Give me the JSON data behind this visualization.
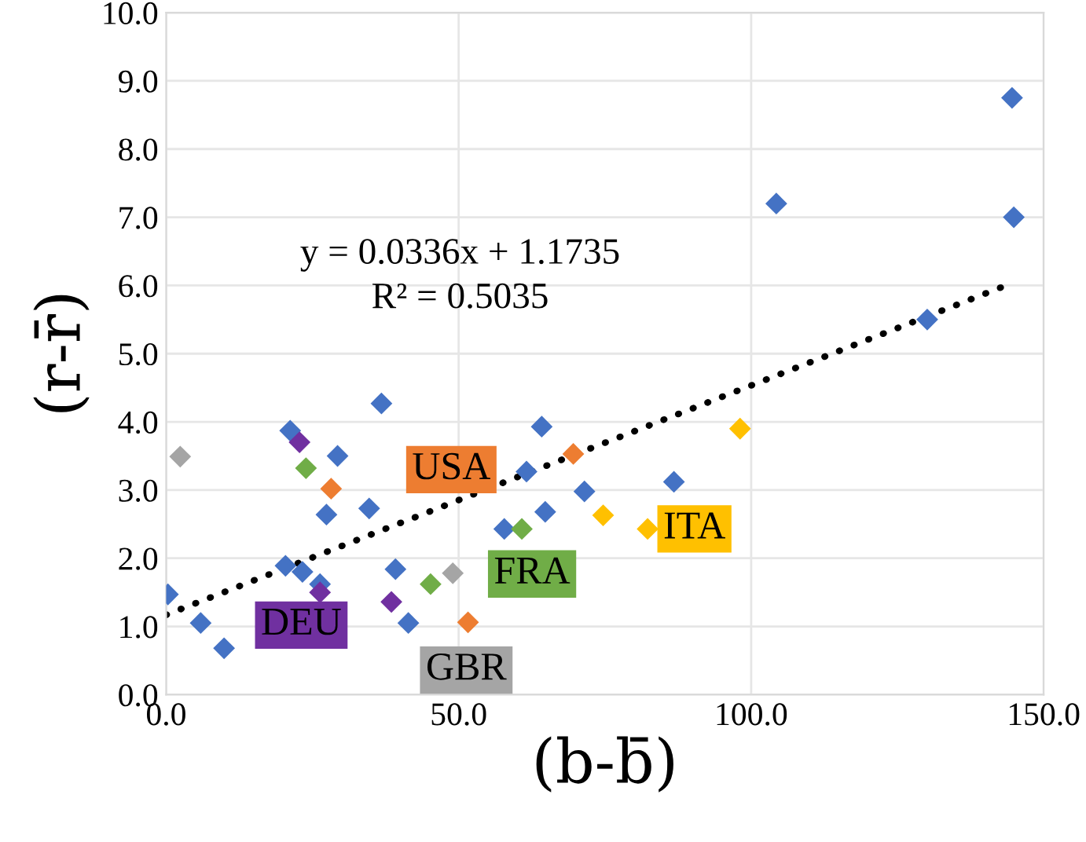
{
  "chart_data": {
    "type": "scatter",
    "xlabel": "(b-b̄)",
    "ylabel": "(r-r̄)",
    "xlim": [
      0,
      150
    ],
    "ylim": [
      0,
      10
    ],
    "xticks": [
      {
        "value": 0,
        "label": "0.0"
      },
      {
        "value": 50,
        "label": "50.0"
      },
      {
        "value": 100,
        "label": "100.0"
      },
      {
        "value": 150,
        "label": "150.0"
      }
    ],
    "yticks": [
      {
        "value": 0,
        "label": "0.0"
      },
      {
        "value": 1,
        "label": "1.0"
      },
      {
        "value": 2,
        "label": "2.0"
      },
      {
        "value": 3,
        "label": "3.0"
      },
      {
        "value": 4,
        "label": "4.0"
      },
      {
        "value": 5,
        "label": "5.0"
      },
      {
        "value": 6,
        "label": "6.0"
      },
      {
        "value": 7,
        "label": "7.0"
      },
      {
        "value": 8,
        "label": "8.0"
      },
      {
        "value": 9,
        "label": "9.0"
      },
      {
        "value": 10,
        "label": "10.0"
      }
    ],
    "grid": true,
    "legend": false,
    "marker": "diamond",
    "series": [
      {
        "color": "#4472c4",
        "x": [
          0.3,
          5.9,
          9.9,
          21.2,
          20.4,
          23.3,
          26.3,
          27.4,
          29.3,
          34.7,
          36.8,
          39.2,
          41.4,
          57.8,
          64.2,
          61.6,
          64.8,
          71.5,
          86.8,
          104.3,
          144.6,
          144.9,
          130.1
        ],
        "values": [
          1.47,
          1.05,
          0.68,
          3.87,
          1.89,
          1.8,
          1.62,
          2.64,
          3.5,
          2.73,
          4.27,
          1.84,
          1.05,
          2.43,
          3.93,
          3.27,
          2.68,
          2.98,
          3.12,
          7.2,
          8.75,
          7.0,
          5.5
        ]
      },
      {
        "name": "USA",
        "color": "#ed7d31",
        "x": [
          28.2,
          69.6,
          51.6
        ],
        "values": [
          3.02,
          3.53,
          1.06
        ]
      },
      {
        "name": "FRA",
        "color": "#70ad47",
        "x": [
          23.9,
          45.2,
          60.8
        ],
        "values": [
          3.32,
          1.62,
          2.43
        ]
      },
      {
        "name": "ITA",
        "color": "#ffc000",
        "x": [
          74.7,
          82.3,
          98.1
        ],
        "values": [
          2.63,
          2.43,
          3.9
        ]
      },
      {
        "name": "DEU",
        "color": "#7030a0",
        "x": [
          22.8,
          26.3,
          38.5
        ],
        "values": [
          3.7,
          1.5,
          1.36
        ]
      },
      {
        "name": "GBR",
        "color": "#a5a5a5",
        "x": [
          2.4,
          49.0
        ],
        "values": [
          3.49,
          1.78
        ]
      },
      {
        "type": "line",
        "color": "#000000",
        "line_style": "dotted",
        "marker": "none",
        "x": [
          0,
          143
        ],
        "values": [
          1.17,
          5.98
        ]
      }
    ],
    "annotations": [
      "y = 0.0336x + 1.1735",
      "R² = 0.5035"
    ]
  }
}
